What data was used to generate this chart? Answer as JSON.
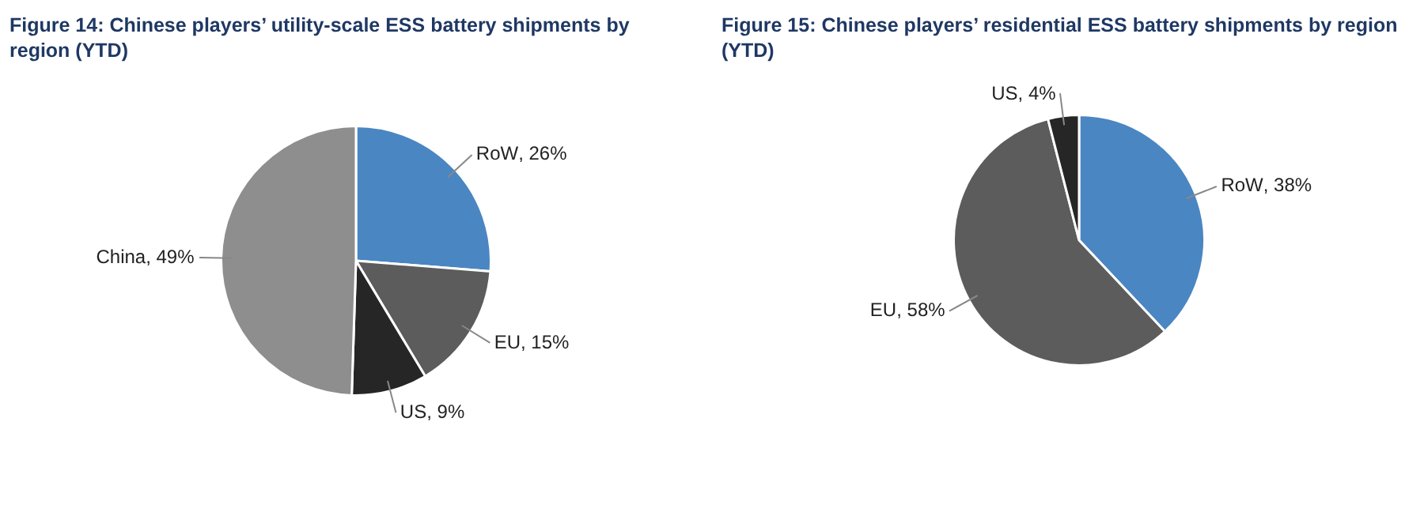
{
  "chart_data": [
    {
      "type": "pie",
      "title": "Figure 14: Chinese players’ utility-scale ESS battery shipments by region (YTD)",
      "categories": [
        "RoW",
        "EU",
        "US",
        "China"
      ],
      "values": [
        26,
        15,
        9,
        49
      ],
      "colors": [
        "#4a86c2",
        "#5c5c5c",
        "#262626",
        "#8e8e8e"
      ],
      "value_labels": [
        ", 26%",
        ", 15%",
        ", 9%",
        ", 49%"
      ],
      "legend": false
    },
    {
      "type": "pie",
      "title": "Figure 15: Chinese players’ residential ESS battery shipments by region (YTD)",
      "categories": [
        "RoW",
        "EU",
        "US"
      ],
      "values": [
        38,
        58,
        4
      ],
      "colors": [
        "#4a86c2",
        "#5c5c5c",
        "#262626"
      ],
      "value_labels": [
        ", 38%",
        ", 58%",
        ", 4%"
      ],
      "legend": false
    }
  ]
}
